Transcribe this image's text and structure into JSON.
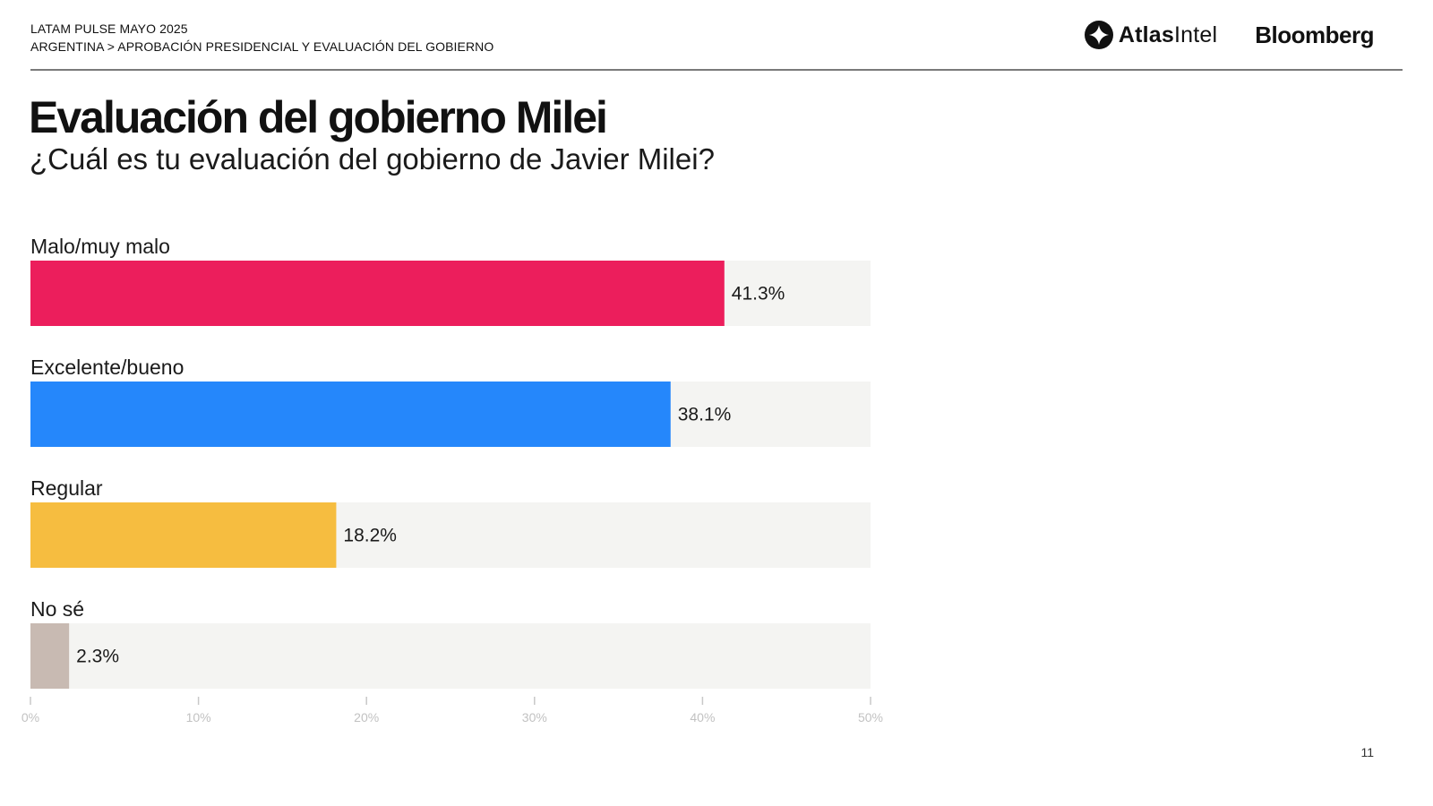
{
  "header": {
    "line1": "LATAM PULSE MAYO 2025",
    "line2": "ARGENTINA > APROBACIÓN PRESIDENCIAL Y EVALUACIÓN DEL GOBIERNO"
  },
  "brand": {
    "atlas_bold": "Atlas",
    "atlas_regular": "Intel",
    "bloomberg": "Bloomberg"
  },
  "title": "Evaluación del gobierno Milei",
  "subtitle": "¿Cuál es tu evaluación del gobierno de Javier Milei?",
  "page_number": "11",
  "colors": {
    "track": "#f4f4f2",
    "tick": "#c8c8c8"
  },
  "chart_data": {
    "type": "bar",
    "orientation": "horizontal",
    "categories": [
      "Malo/muy malo",
      "Excelente/bueno",
      "Regular",
      "No sé"
    ],
    "values": [
      41.3,
      38.1,
      18.2,
      2.3
    ],
    "value_labels": [
      "41.3%",
      "38.1%",
      "18.2%",
      "2.3%"
    ],
    "colors": [
      "#ec1e5c",
      "#2587fb",
      "#f6bd40",
      "#c8bab2"
    ],
    "xlim": [
      0,
      50
    ],
    "ticks": [
      0,
      10,
      20,
      30,
      40,
      50
    ],
    "tick_labels": [
      "0%",
      "10%",
      "20%",
      "30%",
      "40%",
      "50%"
    ],
    "grid": false,
    "legend": "none"
  }
}
